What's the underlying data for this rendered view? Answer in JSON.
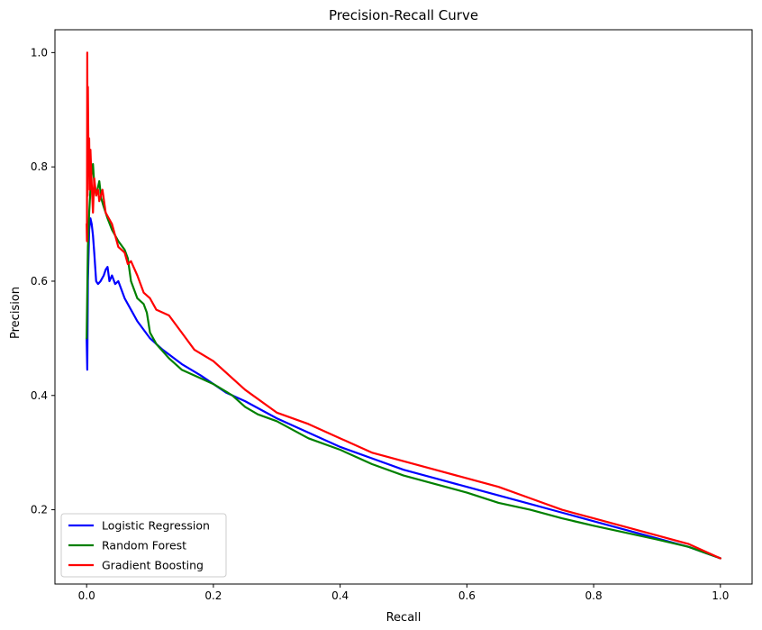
{
  "chart_data": {
    "type": "line",
    "title": "Precision-Recall Curve",
    "xlabel": "Recall",
    "ylabel": "Precision",
    "xlim": [
      -0.05,
      1.05
    ],
    "ylim": [
      0.07,
      1.04
    ],
    "grid": false,
    "legend_position": "lower-left",
    "x_ticks": [
      0.0,
      0.2,
      0.4,
      0.6,
      0.8,
      1.0
    ],
    "x_tick_labels": [
      "0.0",
      "0.2",
      "0.4",
      "0.6",
      "0.8",
      "1.0"
    ],
    "y_ticks": [
      0.2,
      0.4,
      0.6,
      0.8,
      1.0
    ],
    "y_tick_labels": [
      "0.2",
      "0.4",
      "0.6",
      "0.8",
      "1.0"
    ],
    "series": [
      {
        "name": "Logistic Regression",
        "color": "#0000ff",
        "points": [
          [
            0.0,
            0.5
          ],
          [
            0.001,
            0.445
          ],
          [
            0.002,
            0.6
          ],
          [
            0.004,
            0.69
          ],
          [
            0.006,
            0.71
          ],
          [
            0.008,
            0.7
          ],
          [
            0.01,
            0.68
          ],
          [
            0.012,
            0.65
          ],
          [
            0.015,
            0.6
          ],
          [
            0.018,
            0.595
          ],
          [
            0.022,
            0.6
          ],
          [
            0.027,
            0.61
          ],
          [
            0.03,
            0.62
          ],
          [
            0.033,
            0.625
          ],
          [
            0.036,
            0.6
          ],
          [
            0.04,
            0.61
          ],
          [
            0.045,
            0.595
          ],
          [
            0.05,
            0.6
          ],
          [
            0.06,
            0.57
          ],
          [
            0.07,
            0.55
          ],
          [
            0.08,
            0.53
          ],
          [
            0.09,
            0.515
          ],
          [
            0.1,
            0.5
          ],
          [
            0.12,
            0.48
          ],
          [
            0.15,
            0.455
          ],
          [
            0.18,
            0.435
          ],
          [
            0.2,
            0.42
          ],
          [
            0.22,
            0.405
          ],
          [
            0.25,
            0.39
          ],
          [
            0.3,
            0.36
          ],
          [
            0.35,
            0.335
          ],
          [
            0.4,
            0.31
          ],
          [
            0.45,
            0.29
          ],
          [
            0.5,
            0.27
          ],
          [
            0.55,
            0.255
          ],
          [
            0.6,
            0.24
          ],
          [
            0.65,
            0.225
          ],
          [
            0.7,
            0.21
          ],
          [
            0.75,
            0.195
          ],
          [
            0.8,
            0.18
          ],
          [
            0.85,
            0.165
          ],
          [
            0.9,
            0.15
          ],
          [
            0.95,
            0.135
          ],
          [
            1.0,
            0.115
          ]
        ]
      },
      {
        "name": "Random Forest",
        "color": "#008000",
        "points": [
          [
            0.0,
            0.5
          ],
          [
            0.001,
            0.58
          ],
          [
            0.002,
            0.66
          ],
          [
            0.004,
            0.72
          ],
          [
            0.006,
            0.76
          ],
          [
            0.008,
            0.79
          ],
          [
            0.01,
            0.805
          ],
          [
            0.012,
            0.77
          ],
          [
            0.015,
            0.75
          ],
          [
            0.018,
            0.765
          ],
          [
            0.02,
            0.775
          ],
          [
            0.023,
            0.745
          ],
          [
            0.027,
            0.73
          ],
          [
            0.03,
            0.72
          ],
          [
            0.033,
            0.71
          ],
          [
            0.04,
            0.69
          ],
          [
            0.05,
            0.67
          ],
          [
            0.06,
            0.655
          ],
          [
            0.065,
            0.64
          ],
          [
            0.07,
            0.6
          ],
          [
            0.08,
            0.57
          ],
          [
            0.09,
            0.56
          ],
          [
            0.095,
            0.545
          ],
          [
            0.1,
            0.51
          ],
          [
            0.11,
            0.49
          ],
          [
            0.13,
            0.465
          ],
          [
            0.15,
            0.445
          ],
          [
            0.18,
            0.43
          ],
          [
            0.2,
            0.42
          ],
          [
            0.23,
            0.4
          ],
          [
            0.25,
            0.38
          ],
          [
            0.27,
            0.367
          ],
          [
            0.3,
            0.355
          ],
          [
            0.35,
            0.325
          ],
          [
            0.4,
            0.305
          ],
          [
            0.45,
            0.28
          ],
          [
            0.5,
            0.26
          ],
          [
            0.55,
            0.245
          ],
          [
            0.6,
            0.23
          ],
          [
            0.65,
            0.212
          ],
          [
            0.7,
            0.2
          ],
          [
            0.75,
            0.185
          ],
          [
            0.8,
            0.172
          ],
          [
            0.85,
            0.16
          ],
          [
            0.9,
            0.148
          ],
          [
            0.95,
            0.135
          ],
          [
            1.0,
            0.115
          ]
        ]
      },
      {
        "name": "Gradient Boosting",
        "color": "#ff0000",
        "points": [
          [
            0.0,
            0.7
          ],
          [
            0.0005,
            0.67
          ],
          [
            0.001,
            1.0
          ],
          [
            0.0015,
            0.75
          ],
          [
            0.002,
            0.94
          ],
          [
            0.003,
            0.8
          ],
          [
            0.004,
            0.85
          ],
          [
            0.005,
            0.76
          ],
          [
            0.006,
            0.83
          ],
          [
            0.008,
            0.77
          ],
          [
            0.01,
            0.72
          ],
          [
            0.012,
            0.78
          ],
          [
            0.015,
            0.75
          ],
          [
            0.018,
            0.76
          ],
          [
            0.02,
            0.74
          ],
          [
            0.025,
            0.76
          ],
          [
            0.03,
            0.72
          ],
          [
            0.035,
            0.71
          ],
          [
            0.04,
            0.7
          ],
          [
            0.045,
            0.68
          ],
          [
            0.05,
            0.66
          ],
          [
            0.06,
            0.65
          ],
          [
            0.065,
            0.63
          ],
          [
            0.07,
            0.635
          ],
          [
            0.08,
            0.61
          ],
          [
            0.09,
            0.58
          ],
          [
            0.1,
            0.57
          ],
          [
            0.11,
            0.55
          ],
          [
            0.13,
            0.54
          ],
          [
            0.15,
            0.51
          ],
          [
            0.17,
            0.48
          ],
          [
            0.2,
            0.46
          ],
          [
            0.25,
            0.41
          ],
          [
            0.3,
            0.37
          ],
          [
            0.35,
            0.35
          ],
          [
            0.4,
            0.325
          ],
          [
            0.45,
            0.3
          ],
          [
            0.5,
            0.285
          ],
          [
            0.55,
            0.27
          ],
          [
            0.6,
            0.255
          ],
          [
            0.65,
            0.24
          ],
          [
            0.7,
            0.22
          ],
          [
            0.75,
            0.2
          ],
          [
            0.8,
            0.185
          ],
          [
            0.85,
            0.17
          ],
          [
            0.9,
            0.155
          ],
          [
            0.95,
            0.14
          ],
          [
            1.0,
            0.115
          ]
        ]
      }
    ]
  }
}
